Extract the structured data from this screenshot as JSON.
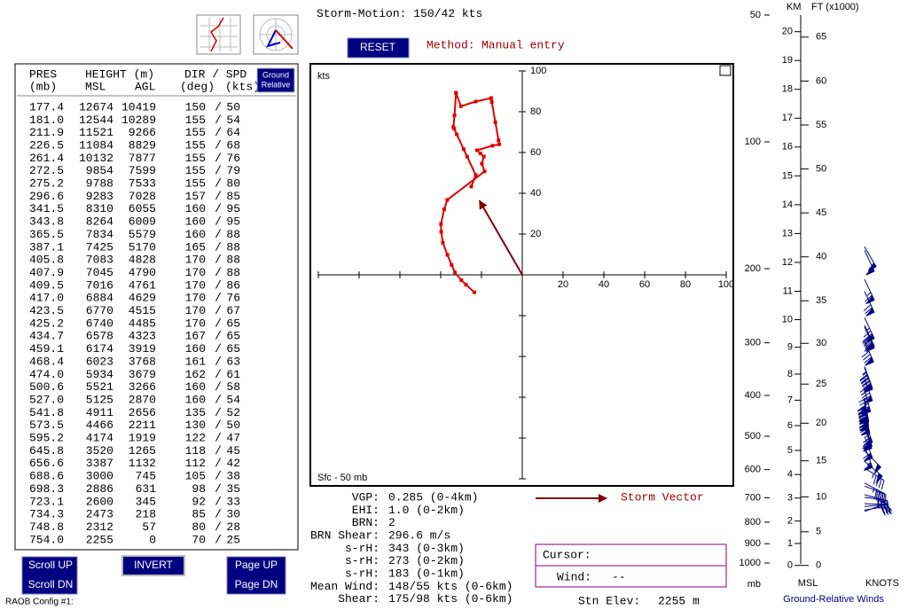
{
  "header": {
    "storm_motion": {
      "label": "Storm-Motion:",
      "dir": 150,
      "sep": "/",
      "spd": 42,
      "unit": "kts"
    },
    "reset": "RESET",
    "method_label": "Method:",
    "method": "Manual entry"
  },
  "table": {
    "header": {
      "pres": "PRES",
      "pres_unit": "(mb)",
      "height": "HEIGHT (m)",
      "msl": "MSL",
      "agl": "AGL",
      "dir_spd": "DIR / SPD",
      "deg": "(deg)",
      "kts": "(kts)"
    },
    "mode_button": [
      "Ground",
      "Relative"
    ],
    "separator": "/",
    "rows": [
      [
        "177.4",
        12674,
        10419,
        150,
        50
      ],
      [
        "181.0",
        12544,
        10289,
        155,
        54
      ],
      [
        "211.9",
        11521,
        9266,
        155,
        64
      ],
      [
        "226.5",
        11084,
        8829,
        155,
        68
      ],
      [
        "261.4",
        10132,
        7877,
        155,
        76
      ],
      [
        "272.5",
        9854,
        7599,
        155,
        79
      ],
      [
        "275.2",
        9788,
        7533,
        155,
        80
      ],
      [
        "296.6",
        9283,
        7028,
        157,
        85
      ],
      [
        "341.5",
        8310,
        6055,
        160,
        95
      ],
      [
        "343.8",
        8264,
        6009,
        160,
        95
      ],
      [
        "365.5",
        7834,
        5579,
        160,
        88
      ],
      [
        "387.1",
        7425,
        5170,
        165,
        88
      ],
      [
        "405.8",
        7083,
        4828,
        170,
        88
      ],
      [
        "407.9",
        7045,
        4790,
        170,
        88
      ],
      [
        "409.5",
        7016,
        4761,
        170,
        86
      ],
      [
        "417.0",
        6884,
        4629,
        170,
        76
      ],
      [
        "423.5",
        6770,
        4515,
        170,
        67
      ],
      [
        "425.2",
        6740,
        4485,
        170,
        65
      ],
      [
        "434.7",
        6578,
        4323,
        167,
        65
      ],
      [
        "459.1",
        6174,
        3919,
        160,
        65
      ],
      [
        "468.4",
        6023,
        3768,
        161,
        63
      ],
      [
        "474.0",
        5934,
        3679,
        162,
        61
      ],
      [
        "500.6",
        5521,
        3266,
        160,
        58
      ],
      [
        "527.0",
        5125,
        2870,
        160,
        54
      ],
      [
        "541.8",
        4911,
        2656,
        135,
        52
      ],
      [
        "573.5",
        4466,
        2211,
        130,
        50
      ],
      [
        "595.2",
        4174,
        1919,
        122,
        47
      ],
      [
        "645.8",
        3520,
        1265,
        118,
        45
      ],
      [
        "656.6",
        3387,
        1132,
        112,
        42
      ],
      [
        "688.6",
        3000,
        745,
        105,
        38
      ],
      [
        "698.3",
        2886,
        631,
        98,
        35
      ],
      [
        "723.1",
        2600,
        345,
        92,
        33
      ],
      [
        "734.3",
        2473,
        218,
        85,
        30
      ],
      [
        "748.8",
        2312,
        57,
        80,
        28
      ],
      [
        "754.0",
        2255,
        0,
        70,
        25
      ]
    ]
  },
  "hodograph": {
    "unit": "kts",
    "layer": "Sfc - 50 mb",
    "lim": 100,
    "xticks": [
      20,
      40,
      60,
      80,
      100
    ],
    "yticks": [
      20,
      40,
      60,
      80,
      100
    ],
    "line_color": "#e00000",
    "storm_vector_color": "#800000",
    "storm_vector_label": "Storm Vector"
  },
  "params": [
    {
      "label": "VGP:",
      "value": "0.285 (0-4km)"
    },
    {
      "label": "EHI:",
      "value": "1.0 (0-2km)"
    },
    {
      "label": "BRN:",
      "value": "2"
    },
    {
      "label": "BRN Shear:",
      "value": "296.6 m/s"
    },
    {
      "label": "s-rH:",
      "value": "343 (0-3km)"
    },
    {
      "label": "s-rH:",
      "value": "273 (0-2km)"
    },
    {
      "label": "s-rH:",
      "value": "183 (0-1km)"
    },
    {
      "label": "Mean Wind:",
      "value": "148/55 kts (0-6km)"
    },
    {
      "label": "Shear:",
      "value": "175/98 kts (0-6km)"
    }
  ],
  "cursor": {
    "label": "Cursor:",
    "wind_label": "Wind:",
    "wind_value": "--"
  },
  "station": {
    "label": "Stn Elev:",
    "value": "2255 m"
  },
  "controls": {
    "scroll_up": "Scroll UP",
    "scroll_dn": "Scroll DN",
    "invert": "INVERT",
    "page_up": "Page UP",
    "page_dn": "Page DN",
    "config": "RAOB Config #1:"
  },
  "profile": {
    "pressure_lim": [
      50,
      1000
    ],
    "log_scale": true,
    "pressure_ticks": [
      50,
      100,
      200,
      300,
      400,
      500,
      600,
      700,
      800,
      900,
      1000
    ],
    "pressure_unit": "mb",
    "km_label": "KM",
    "km_ticks": [
      0,
      1,
      2,
      3,
      4,
      5,
      6,
      7,
      8,
      9,
      10,
      11,
      12,
      13,
      14,
      15,
      16,
      17,
      18,
      19,
      20
    ],
    "ft_label": "FT (x1000)",
    "ft_ticks": [
      0,
      5,
      10,
      15,
      20,
      25,
      30,
      35,
      40,
      45,
      50,
      55,
      60,
      65
    ],
    "msl_label": "MSL",
    "knots_label": "KNOTS",
    "caption": "Ground-Relative Winds",
    "barb_color": "#000080"
  }
}
